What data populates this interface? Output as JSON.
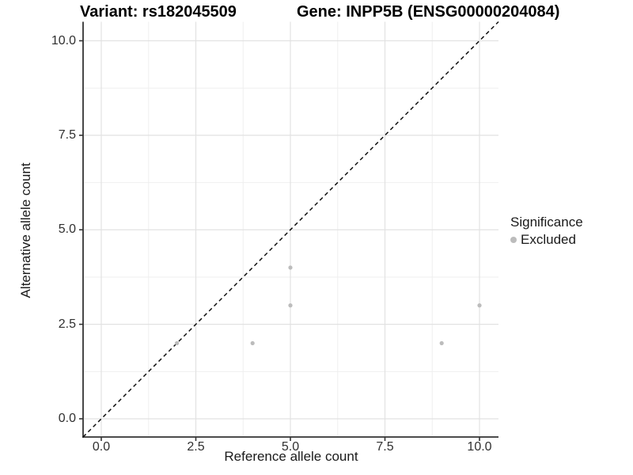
{
  "header": {
    "variant_title": "Variant: rs182045509",
    "gene_title": "Gene: INPP5B (ENSG00000204084)"
  },
  "axes": {
    "x_label": "Reference allele count",
    "y_label": "Alternative allele count"
  },
  "legend": {
    "title": "Significance",
    "items": [
      {
        "label": "Excluded",
        "color": "#bcbcbc"
      }
    ]
  },
  "colors": {
    "point": "#bcbcbc",
    "axis_line": "#333333",
    "major_grid": "#e2e2e2",
    "minor_grid": "#efefef",
    "reference_line": "#111111",
    "tick_text": "#303030"
  },
  "chart_data": {
    "type": "scatter",
    "title": "Variant: rs182045509   Gene: INPP5B (ENSG00000204084)",
    "xlabel": "Reference allele count",
    "ylabel": "Alternative allele count",
    "xlim": [
      -0.5,
      10.5
    ],
    "ylim": [
      -0.5,
      10.5
    ],
    "x_ticks": [
      0,
      2.5,
      5,
      7.5,
      10
    ],
    "x_tick_labels": [
      "0.0",
      "2.5",
      "5.0",
      "7.5",
      "10.0"
    ],
    "y_ticks": [
      0,
      2.5,
      5,
      7.5,
      10
    ],
    "y_tick_labels": [
      "0.0",
      "2.5",
      "5.0",
      "7.5",
      "10.0"
    ],
    "minor_grid_positions": [
      1.25,
      3.75,
      6.25,
      8.75
    ],
    "grid": "major and minor, light gray on white",
    "legend_position": "right",
    "series": [
      {
        "name": "Excluded",
        "color": "#bcbcbc",
        "marker": "circle",
        "points": [
          [
            2,
            2
          ],
          [
            4,
            2
          ],
          [
            5,
            3
          ],
          [
            5,
            4
          ],
          [
            9,
            2
          ],
          [
            10,
            3
          ]
        ]
      }
    ],
    "reference_line": {
      "kind": "identity y=x",
      "style": "dashed",
      "color": "#111111"
    }
  }
}
